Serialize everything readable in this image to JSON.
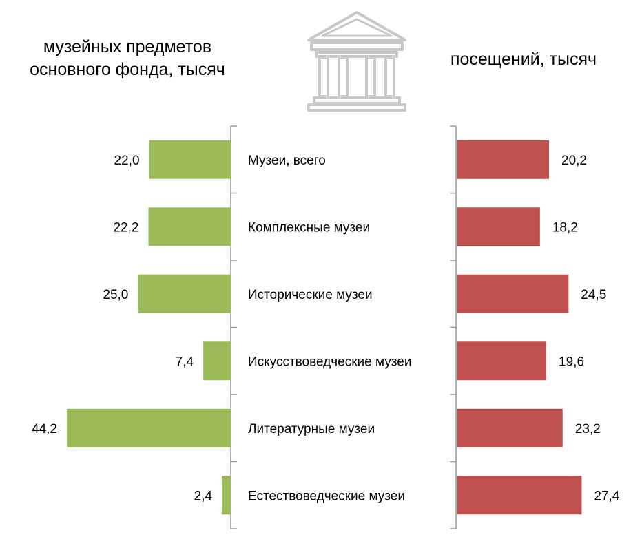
{
  "titles": {
    "left": "музейных предметов основного фонда, тысяч",
    "right": "посещений, тысяч"
  },
  "icon": "museum-building-icon",
  "colors": {
    "left_bars": "#9bbb59",
    "right_bars": "#c0504d",
    "axis": "#999999",
    "icon": "#c8c8c8"
  },
  "chart_data": {
    "type": "bar",
    "orientation": "horizontal",
    "categories": [
      "Музеи, всего",
      "Комплексные музеи",
      "Исторические музеи",
      "Искусствоведческие музеи",
      "Литературные музеи",
      "Естествоведческие музеи"
    ],
    "series": [
      {
        "name": "музейных предметов основного фонда, тысяч",
        "side": "left",
        "values": [
          22.0,
          22.2,
          25.0,
          7.4,
          44.2,
          2.4
        ],
        "labels": [
          "22,0",
          "22,2",
          "25,0",
          "7,4",
          "44,2",
          "2,4"
        ]
      },
      {
        "name": "посещений, тысяч",
        "side": "right",
        "values": [
          20.2,
          18.2,
          24.5,
          19.6,
          23.2,
          27.4
        ],
        "labels": [
          "20,2",
          "18,2",
          "24,5",
          "19,6",
          "23,2",
          "27,4"
        ]
      }
    ]
  }
}
